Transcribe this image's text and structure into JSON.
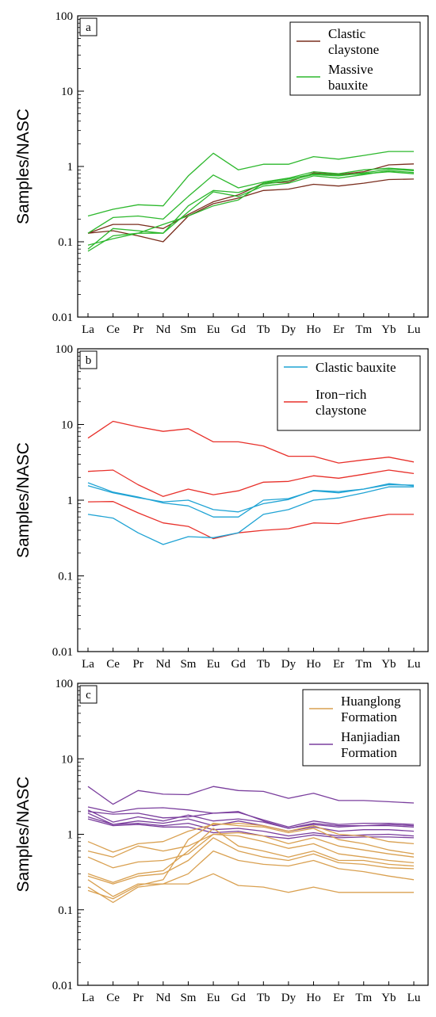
{
  "chart_data": [
    {
      "panel": "a",
      "type": "line",
      "ylabel": "Samples/NASC",
      "yscale": "log",
      "ylim": [
        0.01,
        100
      ],
      "yticks": [
        "0.01",
        "0.1",
        "1",
        "10",
        "100"
      ],
      "categories": [
        "La",
        "Ce",
        "Pr",
        "Nd",
        "Sm",
        "Eu",
        "Gd",
        "Tb",
        "Dy",
        "Ho",
        "Er",
        "Tm",
        "Yb",
        "Lu"
      ],
      "legend_position": "top-right",
      "legend": [
        {
          "lines": [
            "Clastic",
            "claystone"
          ],
          "color": "#7a2e1e"
        },
        {
          "lines": [
            "Massive",
            "bauxite"
          ],
          "color": "#2db82d"
        }
      ],
      "series": [
        {
          "group": 0,
          "values": [
            0.13,
            0.17,
            0.17,
            0.15,
            0.23,
            0.34,
            0.42,
            0.6,
            0.62,
            0.82,
            0.78,
            0.85,
            1.05,
            1.08
          ]
        },
        {
          "group": 0,
          "values": [
            0.13,
            0.14,
            0.12,
            0.1,
            0.22,
            0.32,
            0.38,
            0.48,
            0.5,
            0.58,
            0.55,
            0.6,
            0.67,
            0.68
          ]
        },
        {
          "group": 1,
          "values": [
            0.22,
            0.27,
            0.31,
            0.3,
            0.75,
            1.5,
            0.9,
            1.07,
            1.07,
            1.35,
            1.25,
            1.4,
            1.58,
            1.58
          ]
        },
        {
          "group": 1,
          "values": [
            0.13,
            0.21,
            0.22,
            0.2,
            0.4,
            0.77,
            0.52,
            0.62,
            0.7,
            0.85,
            0.8,
            0.9,
            0.95,
            0.9
          ]
        },
        {
          "group": 1,
          "values": [
            0.08,
            0.15,
            0.14,
            0.13,
            0.3,
            0.48,
            0.45,
            0.58,
            0.65,
            0.78,
            0.75,
            0.82,
            0.92,
            0.88
          ]
        },
        {
          "group": 1,
          "values": [
            0.075,
            0.12,
            0.13,
            0.13,
            0.25,
            0.46,
            0.4,
            0.55,
            0.6,
            0.75,
            0.7,
            0.78,
            0.88,
            0.83
          ]
        },
        {
          "group": 1,
          "values": [
            0.09,
            0.11,
            0.13,
            0.17,
            0.22,
            0.3,
            0.36,
            0.6,
            0.68,
            0.8,
            0.77,
            0.8,
            0.85,
            0.8
          ]
        }
      ]
    },
    {
      "panel": "b",
      "type": "line",
      "ylabel": "Samples/NASC",
      "yscale": "log",
      "ylim": [
        0.01,
        100
      ],
      "yticks": [
        "0.01",
        "0.1",
        "1",
        "10",
        "100"
      ],
      "categories": [
        "La",
        "Ce",
        "Pr",
        "Nd",
        "Sm",
        "Eu",
        "Gd",
        "Tb",
        "Dy",
        "Ho",
        "Er",
        "Tm",
        "Yb",
        "Lu"
      ],
      "legend_position": "top-right",
      "legend": [
        {
          "lines": [
            "Clastic bauxite"
          ],
          "color": "#1fa3d4"
        },
        {
          "lines": [
            "Iron−rich",
            "claystone"
          ],
          "color": "#e8302a"
        }
      ],
      "series": [
        {
          "group": 1,
          "values": [
            6.6,
            11.0,
            9.3,
            8.1,
            8.8,
            5.9,
            5.9,
            5.2,
            3.8,
            3.8,
            3.1,
            3.4,
            3.7,
            3.2
          ]
        },
        {
          "group": 1,
          "values": [
            2.4,
            2.5,
            1.6,
            1.12,
            1.4,
            1.18,
            1.33,
            1.73,
            1.77,
            2.1,
            1.95,
            2.2,
            2.5,
            2.25
          ]
        },
        {
          "group": 1,
          "values": [
            0.95,
            0.96,
            0.68,
            0.5,
            0.45,
            0.31,
            0.37,
            0.4,
            0.42,
            0.5,
            0.49,
            0.57,
            0.65,
            0.65
          ]
        },
        {
          "group": 0,
          "values": [
            1.7,
            1.28,
            1.1,
            0.92,
            0.84,
            0.6,
            0.6,
            1.0,
            1.05,
            1.33,
            1.25,
            1.4,
            1.65,
            1.55
          ]
        },
        {
          "group": 0,
          "values": [
            1.55,
            1.25,
            1.08,
            0.95,
            1.0,
            0.75,
            0.7,
            0.9,
            1.02,
            1.35,
            1.3,
            1.4,
            1.6,
            1.58
          ]
        },
        {
          "group": 0,
          "values": [
            0.65,
            0.58,
            0.37,
            0.26,
            0.33,
            0.32,
            0.37,
            0.65,
            0.75,
            1.0,
            1.07,
            1.25,
            1.5,
            1.5
          ]
        }
      ]
    },
    {
      "panel": "c",
      "type": "line",
      "ylabel": "Samples/NASC",
      "yscale": "log",
      "ylim": [
        0.01,
        100
      ],
      "yticks": [
        "0.01",
        "0.1",
        "1",
        "10",
        "100"
      ],
      "categories": [
        "La",
        "Ce",
        "Pr",
        "Nd",
        "Sm",
        "Eu",
        "Gd",
        "Tb",
        "Dy",
        "Ho",
        "Er",
        "Tm",
        "Yb",
        "Lu"
      ],
      "legend_position": "top-right",
      "legend": [
        {
          "lines": [
            "Huanglong",
            "Formation"
          ],
          "color": "#d9a050"
        },
        {
          "lines": [
            "Hanjiadian",
            "Formation"
          ],
          "color": "#7a3e9d"
        }
      ],
      "series": [
        {
          "group": 1,
          "values": [
            4.3,
            2.5,
            3.8,
            3.4,
            3.35,
            4.3,
            3.8,
            3.7,
            3.0,
            3.5,
            2.8,
            2.8,
            2.7,
            2.6
          ]
        },
        {
          "group": 1,
          "values": [
            2.3,
            1.95,
            2.2,
            2.25,
            2.1,
            1.9,
            1.95,
            1.55,
            1.25,
            1.5,
            1.35,
            1.4,
            1.4,
            1.35
          ]
        },
        {
          "group": 1,
          "values": [
            2.1,
            1.45,
            1.7,
            1.5,
            1.8,
            1.5,
            1.6,
            1.45,
            1.2,
            1.35,
            1.25,
            1.3,
            1.3,
            1.25
          ]
        },
        {
          "group": 1,
          "values": [
            1.9,
            1.35,
            1.5,
            1.4,
            1.6,
            1.3,
            1.5,
            1.3,
            1.1,
            1.25,
            1.1,
            1.15,
            1.15,
            1.1
          ]
        },
        {
          "group": 1,
          "values": [
            1.7,
            1.35,
            1.4,
            1.3,
            1.4,
            1.15,
            1.2,
            1.1,
            0.95,
            1.05,
            0.95,
            0.98,
            1.0,
            0.95
          ]
        },
        {
          "group": 1,
          "values": [
            1.6,
            1.3,
            1.35,
            1.25,
            1.25,
            1.05,
            1.1,
            0.95,
            0.88,
            0.98,
            0.9,
            0.92,
            0.92,
            0.9
          ]
        },
        {
          "group": 1,
          "values": [
            2.0,
            1.85,
            1.9,
            1.65,
            1.7,
            1.9,
            2.0,
            1.5,
            1.2,
            1.4,
            1.3,
            1.3,
            1.35,
            1.3
          ]
        },
        {
          "group": 0,
          "values": [
            0.8,
            0.58,
            0.75,
            0.8,
            1.1,
            1.35,
            1.4,
            1.3,
            1.1,
            1.3,
            1.0,
            0.95,
            0.8,
            0.75
          ]
        },
        {
          "group": 0,
          "values": [
            0.6,
            0.5,
            0.7,
            0.6,
            0.7,
            1.0,
            1.05,
            0.95,
            0.75,
            0.9,
            0.7,
            0.62,
            0.55,
            0.5
          ]
        },
        {
          "group": 0,
          "values": [
            0.5,
            0.36,
            0.43,
            0.45,
            0.55,
            1.0,
            0.95,
            0.8,
            0.65,
            0.75,
            0.55,
            0.5,
            0.45,
            0.42
          ]
        },
        {
          "group": 0,
          "values": [
            0.3,
            0.23,
            0.3,
            0.33,
            0.6,
            1.2,
            0.7,
            0.6,
            0.5,
            0.6,
            0.45,
            0.45,
            0.4,
            0.38
          ]
        },
        {
          "group": 0,
          "values": [
            0.28,
            0.22,
            0.28,
            0.3,
            0.45,
            0.9,
            0.6,
            0.5,
            0.45,
            0.55,
            0.42,
            0.4,
            0.36,
            0.35
          ]
        },
        {
          "group": 0,
          "values": [
            0.25,
            0.15,
            0.22,
            0.22,
            0.3,
            0.6,
            0.45,
            0.4,
            0.38,
            0.45,
            0.35,
            0.32,
            0.28,
            0.25
          ]
        },
        {
          "group": 0,
          "values": [
            0.2,
            0.125,
            0.2,
            0.22,
            0.22,
            0.3,
            0.21,
            0.2,
            0.17,
            0.2,
            0.17,
            0.17,
            0.17,
            0.17
          ]
        },
        {
          "group": 0,
          "values": [
            0.18,
            0.14,
            0.21,
            0.25,
            0.85,
            1.4,
            1.3,
            1.25,
            1.05,
            1.2,
            0.85,
            0.75,
            0.62,
            0.55
          ]
        }
      ]
    }
  ]
}
